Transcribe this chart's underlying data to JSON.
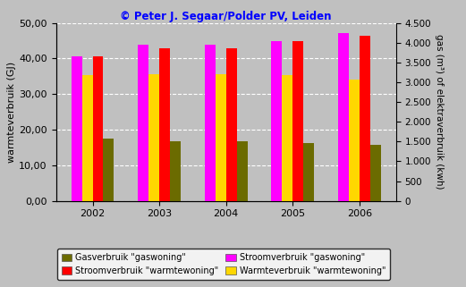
{
  "years": [
    2002,
    2003,
    2004,
    2005,
    2006
  ],
  "gas_gaswoning": [
    17.5,
    16.8,
    16.8,
    16.2,
    15.7
  ],
  "stroom_gaswoning": [
    40.7,
    44.0,
    44.0,
    45.0,
    47.2
  ],
  "stroom_warmtewoning": [
    40.5,
    42.8,
    42.8,
    44.8,
    46.3
  ],
  "warmte_warmtewoning": [
    35.3,
    35.5,
    35.5,
    35.3,
    34.2
  ],
  "title": "© Peter J. Segaar/Polder PV, Leiden",
  "ylabel_left": "warmteverbruik (GJ)",
  "ylabel_right": "gas (m³) of elektraverbruik (kwh)",
  "ylim_left": [
    0,
    50
  ],
  "ylim_right": [
    0,
    4500
  ],
  "yticks_left": [
    0,
    10,
    20,
    30,
    40,
    50
  ],
  "ytick_labels_left": [
    "0,00",
    "10,00",
    "20,00",
    "30,00",
    "40,00",
    "50,00"
  ],
  "yticks_right": [
    0,
    500,
    1000,
    1500,
    2000,
    2500,
    3000,
    3500,
    4000,
    4500
  ],
  "ytick_labels_right": [
    "0",
    "500",
    "1.000",
    "1.500",
    "2.000",
    "2.500",
    "3.000",
    "3.500",
    "4.000",
    "4.500"
  ],
  "color_gas_gaswoning": "#6B6B00",
  "color_stroom_gaswoning": "#FF00FF",
  "color_stroom_warmtewoning": "#FF0000",
  "color_warmte_warmtewoning": "#FFD700",
  "bg_color": "#C0C0C0",
  "bar_width": 0.16,
  "legend_gas_gaswoning": "Gasverbruik \"gaswoning\"",
  "legend_stroom_warmtewoning": "Stroomverbruik \"warmtewoning\"",
  "legend_stroom_gaswoning": "Stroomverbruik \"gaswoning\"",
  "legend_warmte_warmtewoning": "Warmteverbruik \"warmtewoning\""
}
